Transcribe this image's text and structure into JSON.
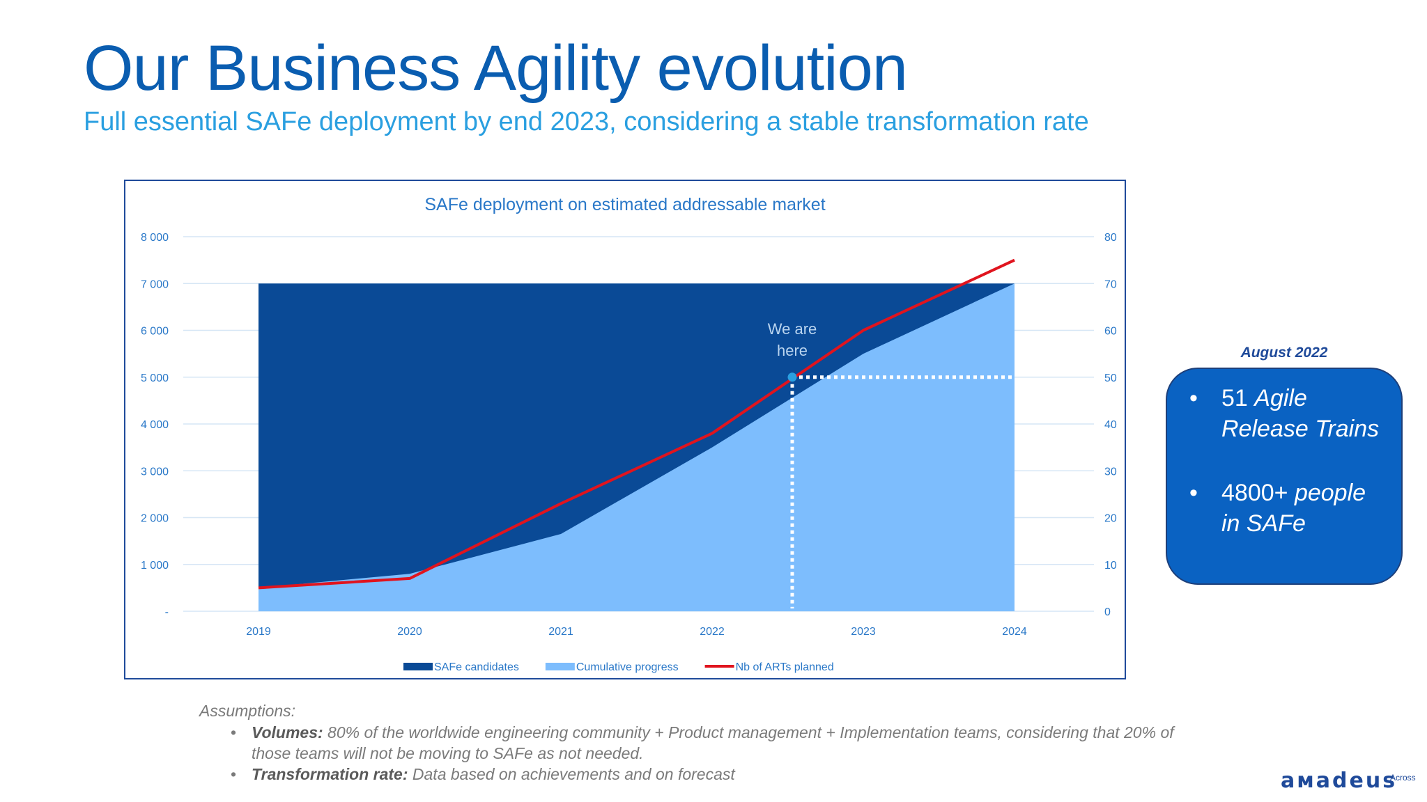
{
  "slide": {
    "title": "Our Business Agility evolution",
    "subtitle": "Full essential SAFe deployment by end 2023, considering a stable transformation rate"
  },
  "chart_data": {
    "type": "area",
    "title": "SAFe deployment on estimated addressable market",
    "x": [
      "2019",
      "2020",
      "2021",
      "2022",
      "2023",
      "2024"
    ],
    "x_values": [
      2019,
      2020,
      2021,
      2022,
      2023,
      2024
    ],
    "y_left_ticks": [
      "-",
      "1 000",
      "2 000",
      "3 000",
      "4 000",
      "5 000",
      "6 000",
      "7 000",
      "8 000"
    ],
    "y_right_ticks": [
      "0",
      "10",
      "20",
      "30",
      "40",
      "50",
      "60",
      "70",
      "80"
    ],
    "ylim_left": [
      0,
      8000
    ],
    "ylim_right": [
      0,
      80
    ],
    "grid": true,
    "legend_position": "bottom",
    "series": [
      {
        "name": "SAFe candidates",
        "kind": "area",
        "axis": "left",
        "color": "#0a4a96",
        "x": [
          2019,
          2024
        ],
        "y": [
          7000,
          7000
        ]
      },
      {
        "name": "Cumulative progress",
        "kind": "area",
        "axis": "left",
        "color": "#7dbdfd",
        "x": [
          2019,
          2020,
          2021,
          2022,
          2023,
          2024
        ],
        "y": [
          500,
          800,
          1650,
          3500,
          5500,
          7000
        ]
      },
      {
        "name": "Nb of ARTs planned",
        "kind": "line",
        "axis": "right",
        "color": "#e0141e",
        "x": [
          2019,
          2020,
          2021,
          2022,
          2023,
          2024
        ],
        "y": [
          5,
          7,
          23,
          38,
          60,
          75
        ]
      }
    ],
    "marker": {
      "label_line1": "We are",
      "label_line2": "here",
      "x": 2022.53,
      "y": 5000,
      "color": "#2a9fe0"
    },
    "colors": {
      "axis_text": "#2a78c8",
      "title": "#2a78c8",
      "grid": "#d6e6f5"
    }
  },
  "callout": {
    "date": "August 2022",
    "items": [
      {
        "bullet": "•",
        "plain": "51 ",
        "italic": "Agile Release Trains"
      },
      {
        "bullet": "•",
        "plain": "4800+ ",
        "italic": "people in SAFe"
      }
    ]
  },
  "assumptions": {
    "heading": "Assumptions:",
    "items": [
      {
        "bullet": "•",
        "key": "Volumes:",
        "text": " 80% of the worldwide engineering community  + Product management + Implementation teams, considering that 20% of those teams will not be moving to SAFe as not needed."
      },
      {
        "bullet": "•",
        "key": "Transformation rate:",
        "text": " Data based on achievements and on forecast"
      }
    ]
  },
  "brand": {
    "name": "aмadeus",
    "tag": "Across"
  }
}
